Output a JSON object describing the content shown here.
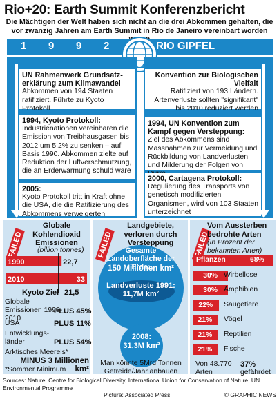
{
  "title": "Rio+20: Earth Summit Konferenzbericht",
  "subtitle": "Die Mächtigen der Welt haben sich nicht an die drei Abkommen gehalten, die vor zwanzig Jahren am Earth Summit in Rio de Janeiro vereinbart worden waren",
  "band": {
    "year_digits": [
      "1",
      "9",
      "9",
      "2"
    ],
    "label": "RIO GIPFEL"
  },
  "left_cards": [
    {
      "head": "UN Rahmenwerk Grundsatz-erklärung zum Klimawandel",
      "body": "Abkommen von 194 Staaten ratifiziert. Führte zu Kyoto Protokoll"
    },
    {
      "head": "1994, Kyoto Protokoll:",
      "body": "Industrienationen vereinbaren die Emission von Treibhausgasen bis 2012 um 5,2% zu senken – auf Basis 1990. Abkommen zielte auf Reduktion der Luftverschmutzung, die an Erderwärmung schuld wäre"
    },
    {
      "head": "2005:",
      "body": "Kyoto Protokoll tritt in Kraft ohne die USA, die die Ratifizierung des Abkommens verweigerten"
    }
  ],
  "right_cards": [
    {
      "head": "Konvention zur Biologischen Vielfalt",
      "body": "Ratifiziert von 193 Ländern. Artenverluste sollten \"signifikant\" bis 2010 reduziert werden"
    },
    {
      "head": "1994, UN Konvention zum Kampf gegen Versteppung:",
      "body": "Ziel des Abkommens sind Massnahmen zur Vermeidung und Rückbildung von Landverlusten und Milderung der Folgen von Dürre"
    },
    {
      "head": "2000, Cartagena Protokoll:",
      "body": "Regulierung des Transports von genetisch modifizierten Organismen, wird von 103 Staaten unterzeichnet"
    }
  ],
  "failed_label": "FAILED",
  "co2": {
    "head": "Globale Kohlendioxid Emissionen",
    "unit": "(billion tonnes)",
    "kyoto_label": "Kyoto Ziel",
    "kyoto_value": "21,5",
    "lines": [
      {
        "label": "Globale Emissionen 1990-2010",
        "value": "PLUS 45%"
      },
      {
        "label": "USA",
        "value": "PLUS 11%"
      },
      {
        "label": "Entwicklungs-länder",
        "value": "PLUS 54%"
      },
      {
        "label": "Arktisches Meereis*",
        "value": "MINUS 3 Millionen km²"
      }
    ],
    "footnote": "*Sommer Minimum"
  },
  "land": {
    "head": "Landgebiete, verloren durch Versteppung",
    "circle_head": "Gesamte Landoberfläche der Erde:",
    "total": "150 Millionen km²",
    "loss1991_label": "Landverluste 1991:",
    "loss1991": "11,7M km²",
    "loss2008_label": "2008:",
    "loss2008": "31,3M km²",
    "footer": "Man könnte 5Mrd Tonnen Getreide/Jahr anbauen"
  },
  "species": {
    "head": "Vom Aussterben bedrohte Arten",
    "sub": "(In Prozent der bekannten Arten)",
    "bottom_label": "Von 48.770 Arten",
    "bottom_value": "37%",
    "bottom_suffix": "gefährdet"
  },
  "chart_data": [
    {
      "type": "bar",
      "title": "Globale Kohlendioxid Emissionen",
      "ylabel": "(billion tonnes)",
      "categories": [
        "1990",
        "2010"
      ],
      "values": [
        22.7,
        33
      ],
      "value_labels": [
        "22,7",
        "33"
      ],
      "reference_line": {
        "label": "Kyoto Ziel",
        "value": 21.5
      }
    },
    {
      "type": "bar",
      "title": "Vom Aussterben bedrohte Arten",
      "ylabel": "(In Prozent der bekannten Arten)",
      "categories": [
        "Pflanzen",
        "Wirbellose",
        "Amphibien",
        "Säugetiere",
        "Vögel",
        "Reptilien",
        "Fische"
      ],
      "values": [
        68,
        30,
        30,
        22,
        21,
        21,
        21
      ]
    }
  ],
  "colors": {
    "blue": "#1b87c8",
    "red": "#d8232a",
    "light": "#cfe3f2"
  },
  "footer": "Sources: Nature, Centre for Biological Diversity, International Union for Conservation of Nature, UN Environmental Programme",
  "picture_credit": "Picture: Associated Press",
  "credit": "© GRAPHIC NEWS"
}
